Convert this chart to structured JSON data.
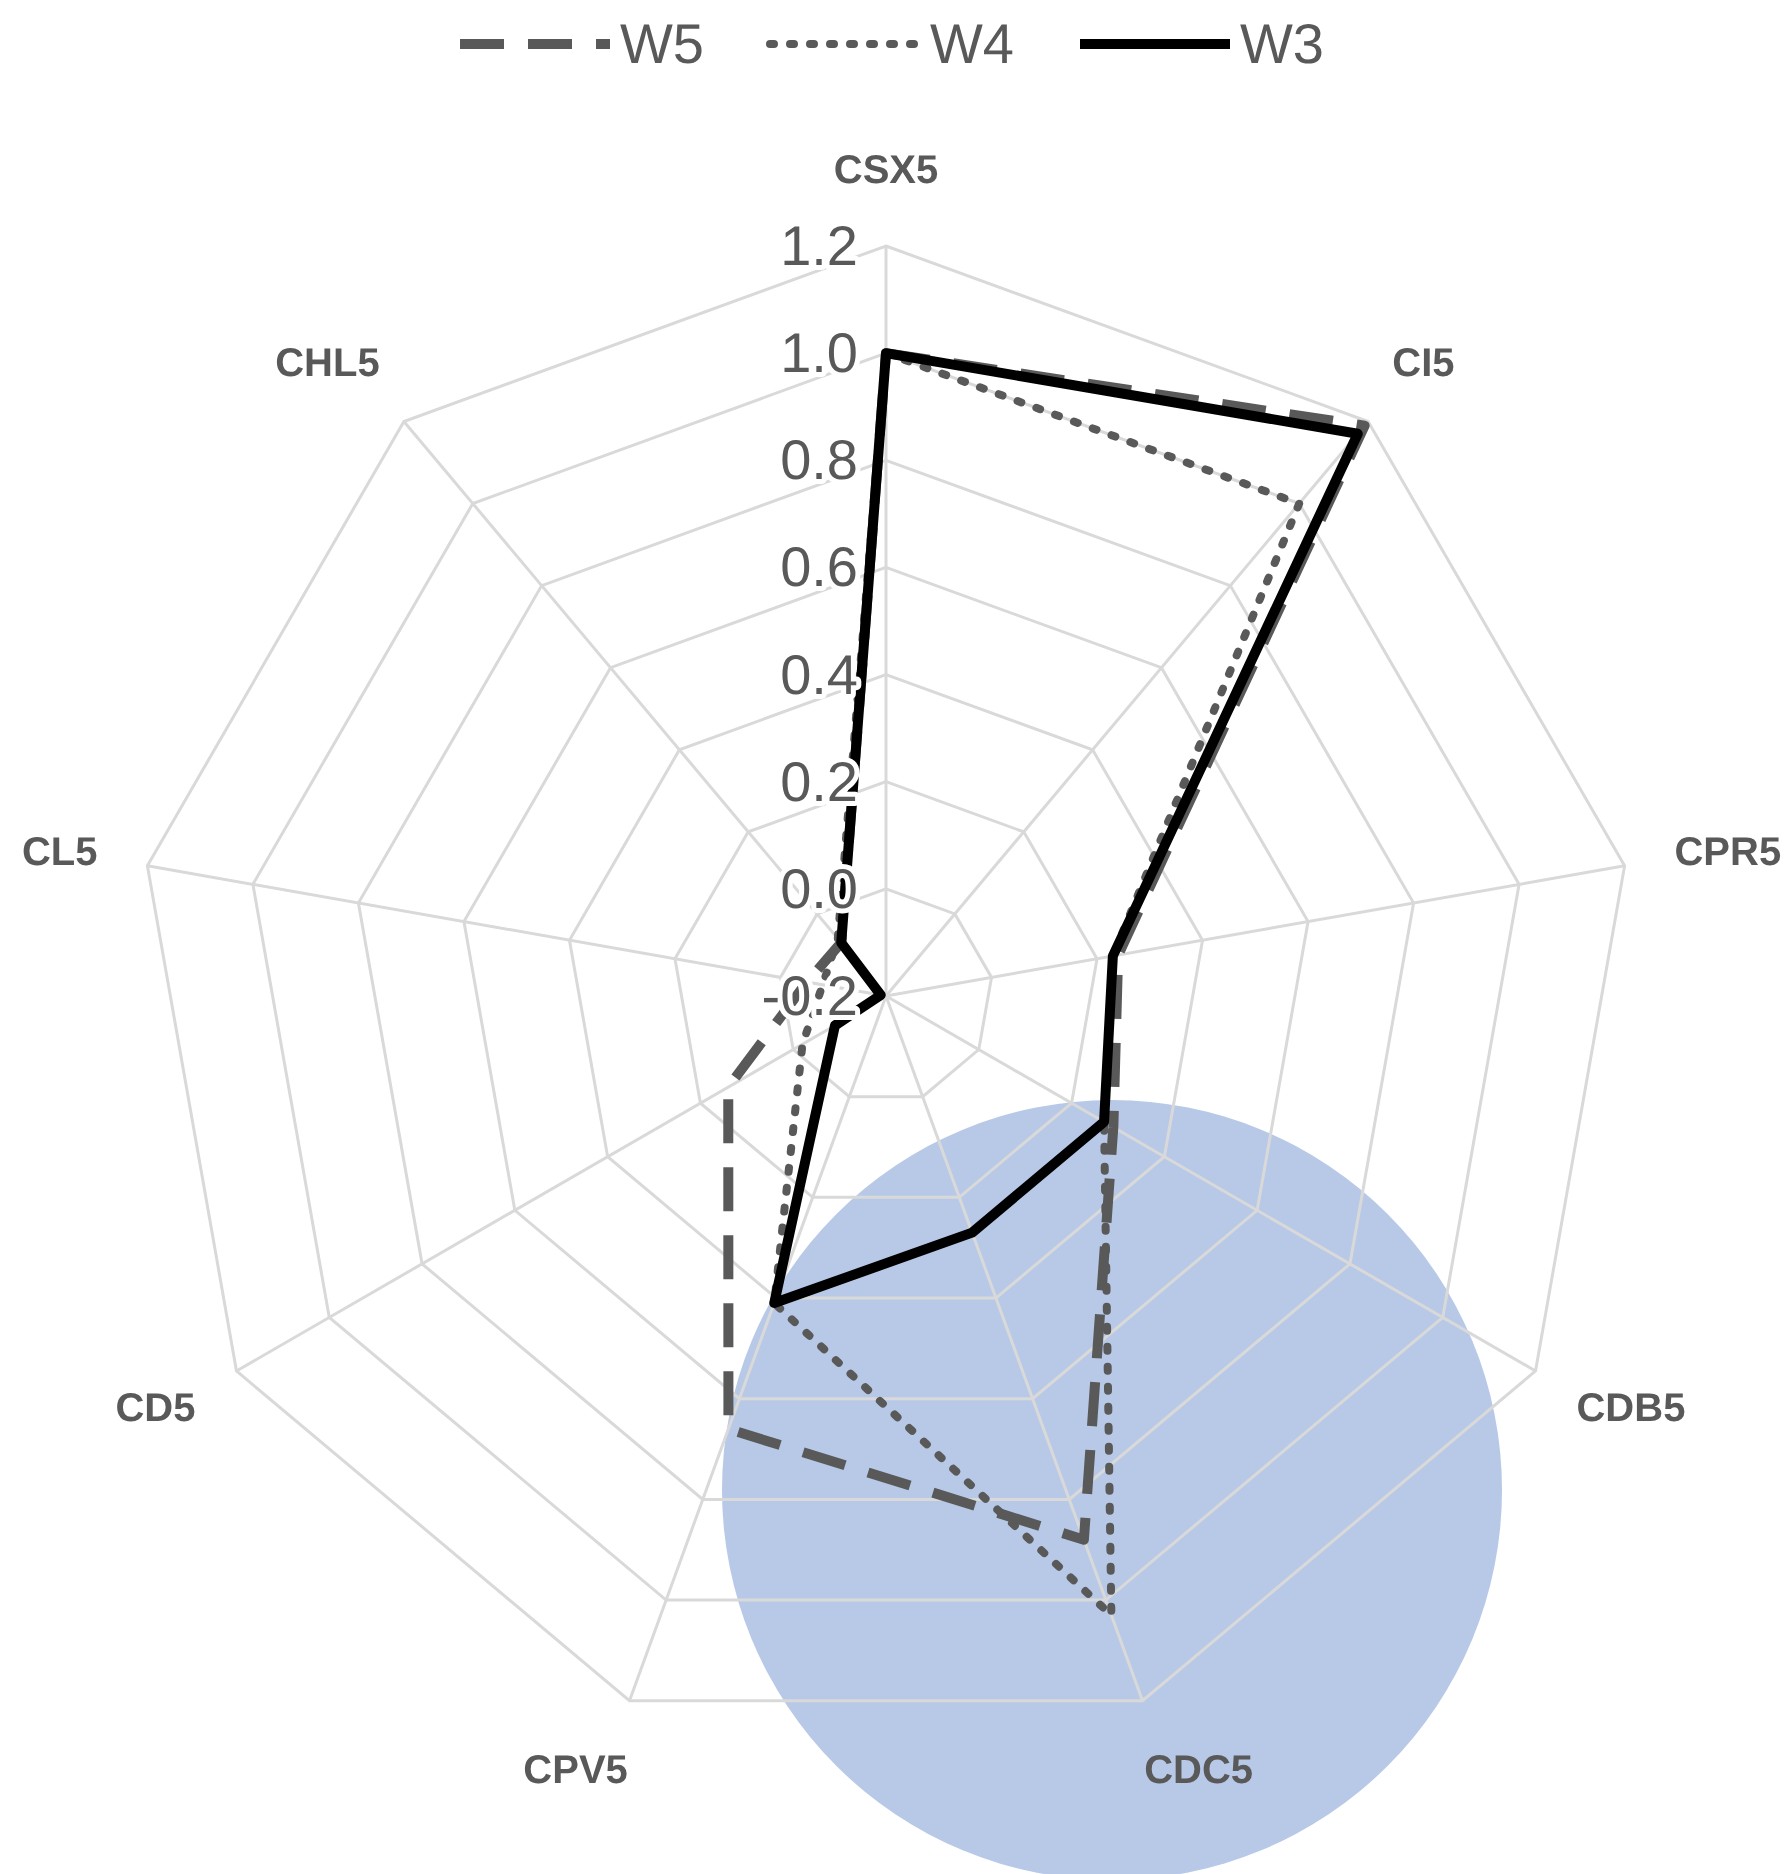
{
  "chart_data": {
    "type": "radar",
    "categories": [
      "CSX5",
      "CI5",
      "CPR5",
      "CDB5",
      "CDC5",
      "CPV5",
      "CD5",
      "CL5",
      "CHL5"
    ],
    "ylim": [
      -0.2,
      1.2
    ],
    "yticks": [
      -0.2,
      {
        "value": 0,
        "label": "0.0"
      },
      0.2,
      0.4,
      0.6,
      0.8,
      {
        "value": 1,
        "label": "1.0"
      },
      1.2
    ],
    "grid": true,
    "legend": "top",
    "series": [
      {
        "name": "W5",
        "color": "#595959",
        "line_style": "dashed",
        "values": [
          1.0,
          1.19,
          0.24,
          0.29,
          0.88,
          0.66,
          0.14,
          -0.05,
          -0.07
        ]
      },
      {
        "name": "W4",
        "color": "#595959",
        "line_style": "dotted",
        "values": [
          1.0,
          1.0,
          0.23,
          0.27,
          1.03,
          0.41,
          -0.02,
          -0.08,
          -0.06
        ]
      },
      {
        "name": "W3",
        "color": "#000000",
        "line_style": "solid",
        "values": [
          1.0,
          1.17,
          0.23,
          0.27,
          0.27,
          0.41,
          -0.09,
          -0.19,
          -0.07
        ]
      }
    ]
  }
}
